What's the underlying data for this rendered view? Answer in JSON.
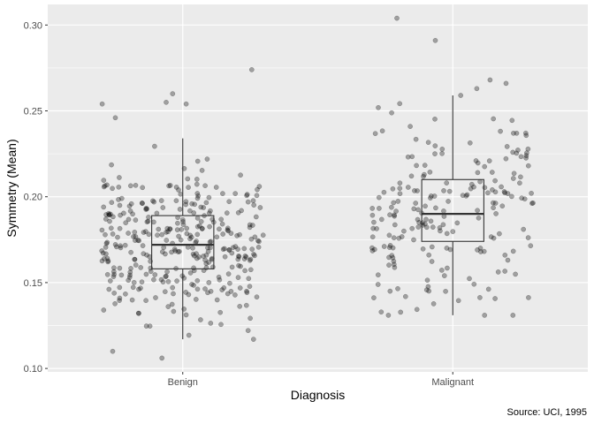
{
  "chart_data": {
    "type": "boxplot",
    "xlabel": "Diagnosis",
    "ylabel": "Symmetry (Mean)",
    "caption": "Source: UCI, 1995",
    "ylim": [
      0.098,
      0.312
    ],
    "yticks": [
      0.1,
      0.15,
      0.2,
      0.25,
      0.3
    ],
    "ytick_labels": [
      "0.10",
      "0.15",
      "0.20",
      "0.25",
      "0.30"
    ],
    "categories": [
      "Benign",
      "Malignant"
    ],
    "grid": true,
    "boxes": [
      {
        "category": "Benign",
        "whisker_low": 0.117,
        "q1": 0.158,
        "median": 0.172,
        "q3": 0.189,
        "whisker_high": 0.234,
        "n": 357
      },
      {
        "category": "Malignant",
        "whisker_low": 0.131,
        "q1": 0.174,
        "median": 0.19,
        "q3": 0.21,
        "whisker_high": 0.259,
        "n": 212
      }
    ],
    "outliers": [
      {
        "category": "Benign",
        "values": [
          0.274,
          0.26,
          0.255,
          0.254,
          0.254,
          0.246,
          0.106,
          0.11
        ]
      },
      {
        "category": "Malignant",
        "values": [
          0.304,
          0.291,
          0.268,
          0.266,
          0.263
        ]
      }
    ],
    "colors": {
      "panel": "#ebebeb",
      "grid": "#ffffff",
      "point": "#000000",
      "box": "#333333"
    }
  }
}
